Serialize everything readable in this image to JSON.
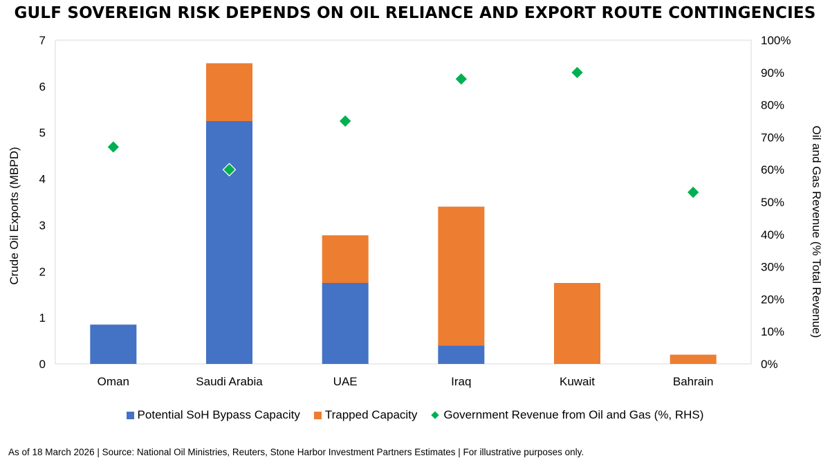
{
  "title": "GULF SOVEREIGN RISK DEPENDS ON OIL RELIANCE AND EXPORT ROUTE CONTINGENCIES",
  "footnote": "As of 18 March 2026  |  Source: National Oil Ministries, Reuters, Stone Harbor Investment Partners Estimates  |  For illustrative purposes only.",
  "chart_data": {
    "type": "bar",
    "stacked": true,
    "categories": [
      "Oman",
      "Saudi Arabia",
      "UAE",
      "Iraq",
      "Kuwait",
      "Bahrain"
    ],
    "series": [
      {
        "name": "Potential SoH Bypass Capacity",
        "axis": "left",
        "color": "#4472C4",
        "values": [
          0.85,
          5.25,
          1.75,
          0.4,
          0,
          0
        ]
      },
      {
        "name": "Trapped Capacity",
        "axis": "left",
        "color": "#ED7D31",
        "values": [
          0,
          1.25,
          1.03,
          3.0,
          1.75,
          0.2
        ]
      },
      {
        "name": "Government Revenue from Oil and Gas (%, RHS)",
        "axis": "right",
        "kind": "scatter",
        "marker": "diamond",
        "color": "#00B050",
        "values": [
          67,
          60,
          75,
          88,
          90,
          53
        ]
      }
    ],
    "ylabel": "Crude Oil Exports (MBPD)",
    "ylim": [
      0,
      7
    ],
    "yticks": [
      "0",
      "1",
      "2",
      "3",
      "4",
      "5",
      "6",
      "7"
    ],
    "y2label": "Oil and Gas Revenue (% Total Revenue)",
    "y2lim": [
      0,
      100
    ],
    "y2ticks": [
      "0%",
      "10%",
      "20%",
      "30%",
      "40%",
      "50%",
      "60%",
      "70%",
      "80%",
      "90%",
      "100%"
    ],
    "legend_position": "bottom"
  }
}
